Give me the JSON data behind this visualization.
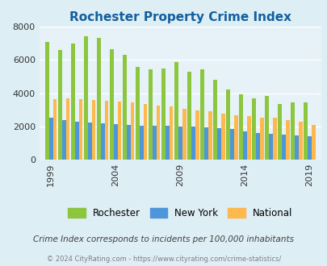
{
  "title": "Rochester Property Crime Index",
  "title_color": "#1060a0",
  "subtitle": "Crime Index corresponds to incidents per 100,000 inhabitants",
  "subtitle_color": "#404040",
  "footer": "© 2024 CityRating.com - https://www.cityrating.com/crime-statistics/",
  "footer_color": "#808080",
  "years": [
    1999,
    2000,
    2001,
    2002,
    2003,
    2004,
    2005,
    2006,
    2007,
    2008,
    2009,
    2010,
    2011,
    2012,
    2013,
    2014,
    2015,
    2016,
    2017,
    2018,
    2019
  ],
  "rochester": [
    7100,
    6600,
    7000,
    7400,
    7300,
    6650,
    6300,
    5600,
    5450,
    5500,
    5850,
    5300,
    5450,
    4800,
    4200,
    3950,
    3700,
    3850,
    3350,
    3450,
    3450
  ],
  "new_york": [
    2500,
    2400,
    2300,
    2250,
    2200,
    2150,
    2100,
    2050,
    2050,
    2050,
    2000,
    2000,
    1950,
    1900,
    1850,
    1700,
    1600,
    1550,
    1500,
    1450,
    1400
  ],
  "national": [
    3650,
    3700,
    3650,
    3600,
    3550,
    3500,
    3450,
    3350,
    3250,
    3200,
    3050,
    2950,
    2900,
    2750,
    2650,
    2600,
    2500,
    2500,
    2400,
    2300,
    2100
  ],
  "rochester_color": "#8cc63f",
  "new_york_color": "#4d96d9",
  "national_color": "#fdb94d",
  "background_color": "#ddeef5",
  "plot_bg_color": "#e6f2f8",
  "ylim": [
    0,
    8000
  ],
  "yticks": [
    0,
    2000,
    4000,
    6000,
    8000
  ],
  "xtick_years": [
    1999,
    2004,
    2009,
    2014,
    2019
  ],
  "bar_width": 0.3,
  "grid_color": "#ffffff"
}
